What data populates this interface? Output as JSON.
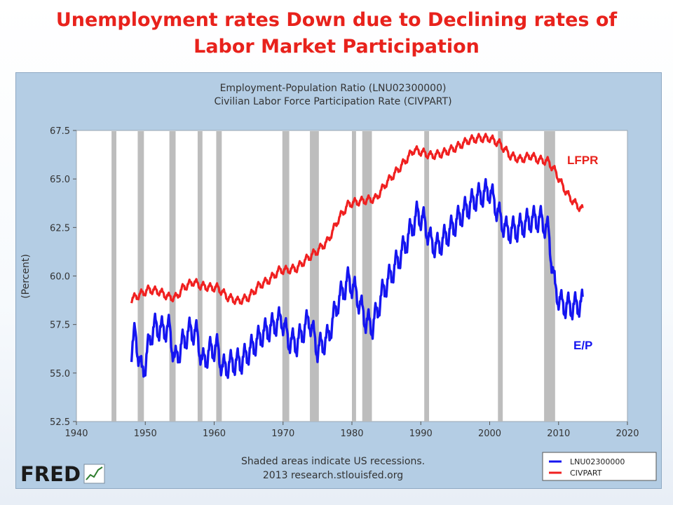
{
  "slide": {
    "title_line1": "Unemployment rates Down due to Declining rates of",
    "title_line2": "Labor Market Participation"
  },
  "annotations": {
    "lfpr": "LFPR",
    "ep": "E/P"
  },
  "fred": {
    "logo_text": "FRED",
    "note_line1": "Shaded areas indicate US recessions.",
    "note_line2": "2013 research.stlouisfed.org"
  },
  "colors": {
    "accent_title": "#e8221c",
    "panel": "#b4cde4",
    "recession": "#bdbdbd"
  },
  "chart_data": {
    "type": "line",
    "title": "Employment-Population Ratio (LNU02300000)",
    "subtitle": "Civilian Labor Force Participation Rate (CIVPART)",
    "xlabel": "",
    "ylabel": "(Percent)",
    "xlim": [
      1940,
      2020
    ],
    "ylim": [
      52.5,
      67.5
    ],
    "xticks": [
      1940,
      1950,
      1960,
      1970,
      1980,
      1990,
      2000,
      2010,
      2020
    ],
    "yticks": [
      "52.5",
      "55.0",
      "57.5",
      "60.0",
      "62.5",
      "65.0",
      "67.5"
    ],
    "grid": false,
    "legend_position": "bottom-right",
    "recessions": [
      [
        1945.1,
        1945.8
      ],
      [
        1948.9,
        1949.8
      ],
      [
        1953.5,
        1954.4
      ],
      [
        1957.6,
        1958.3
      ],
      [
        1960.3,
        1961.1
      ],
      [
        1969.9,
        1970.9
      ],
      [
        1973.9,
        1975.2
      ],
      [
        1980.0,
        1980.6
      ],
      [
        1981.5,
        1982.9
      ],
      [
        1990.5,
        1991.2
      ],
      [
        2001.2,
        2001.9
      ],
      [
        2007.9,
        2009.5
      ]
    ],
    "series": [
      {
        "name": "LNU02300000",
        "color": "#1515f0",
        "seasonal_amplitude": 1.1,
        "x": [
          1948.0,
          1948.5,
          1949.0,
          1949.5,
          1950.0,
          1950.8,
          1951.5,
          1952.5,
          1953.5,
          1954.3,
          1955.5,
          1956.5,
          1957.5,
          1958.3,
          1959.5,
          1960.5,
          1961.2,
          1962.5,
          1964.0,
          1965.5,
          1967.0,
          1968.5,
          1969.8,
          1970.8,
          1972.0,
          1973.8,
          1975.0,
          1976.5,
          1978.0,
          1979.5,
          1980.5,
          1982.0,
          1983.0,
          1984.5,
          1986.0,
          1987.5,
          1989.5,
          1990.5,
          1991.5,
          1992.5,
          1994.0,
          1996.0,
          1998.0,
          2000.0,
          2001.5,
          2002.5,
          2004.0,
          2006.0,
          2007.5,
          2008.5,
          2009.5,
          2010.5,
          2012.0,
          2013.5
        ],
        "values": [
          56.2,
          57.0,
          56.0,
          55.0,
          55.5,
          57.0,
          57.4,
          57.2,
          57.3,
          55.6,
          56.6,
          57.2,
          57.0,
          55.5,
          56.2,
          56.3,
          55.2,
          55.5,
          55.6,
          56.3,
          57.0,
          57.4,
          57.8,
          56.7,
          56.5,
          57.8,
          56.2,
          56.8,
          58.7,
          59.8,
          59.2,
          57.7,
          57.4,
          59.2,
          60.3,
          61.4,
          63.2,
          62.8,
          61.7,
          61.5,
          62.2,
          63.2,
          64.0,
          64.4,
          63.0,
          62.3,
          62.4,
          62.9,
          62.9,
          62.3,
          59.3,
          58.5,
          58.4,
          58.6
        ]
      },
      {
        "name": "CIVPART",
        "color": "#f02020",
        "seasonal_amplitude": 0.35,
        "x": [
          1948.0,
          1949.0,
          1950.5,
          1952.0,
          1953.5,
          1954.5,
          1955.5,
          1957.0,
          1958.0,
          1959.5,
          1960.5,
          1962.0,
          1963.5,
          1965.0,
          1966.5,
          1968.0,
          1969.5,
          1970.5,
          1972.0,
          1973.5,
          1975.0,
          1976.5,
          1978.0,
          1979.5,
          1980.5,
          1982.0,
          1983.5,
          1985.0,
          1987.0,
          1989.0,
          1990.0,
          1991.5,
          1993.0,
          1995.0,
          1997.0,
          1998.5,
          2000.0,
          2001.5,
          2003.0,
          2004.5,
          2006.0,
          2007.0,
          2008.5,
          2009.5,
          2010.5,
          2011.5,
          2012.5,
          2013.5
        ],
        "values": [
          58.8,
          59.0,
          59.3,
          59.2,
          58.9,
          58.9,
          59.4,
          59.7,
          59.5,
          59.4,
          59.4,
          58.9,
          58.7,
          58.9,
          59.5,
          59.8,
          60.3,
          60.3,
          60.4,
          60.9,
          61.3,
          61.8,
          62.9,
          63.7,
          63.8,
          63.9,
          64.0,
          64.8,
          65.6,
          66.5,
          66.4,
          66.2,
          66.3,
          66.6,
          67.0,
          67.1,
          67.1,
          66.8,
          66.2,
          66.0,
          66.2,
          66.0,
          65.9,
          65.4,
          64.7,
          64.1,
          63.7,
          63.4
        ]
      }
    ]
  }
}
